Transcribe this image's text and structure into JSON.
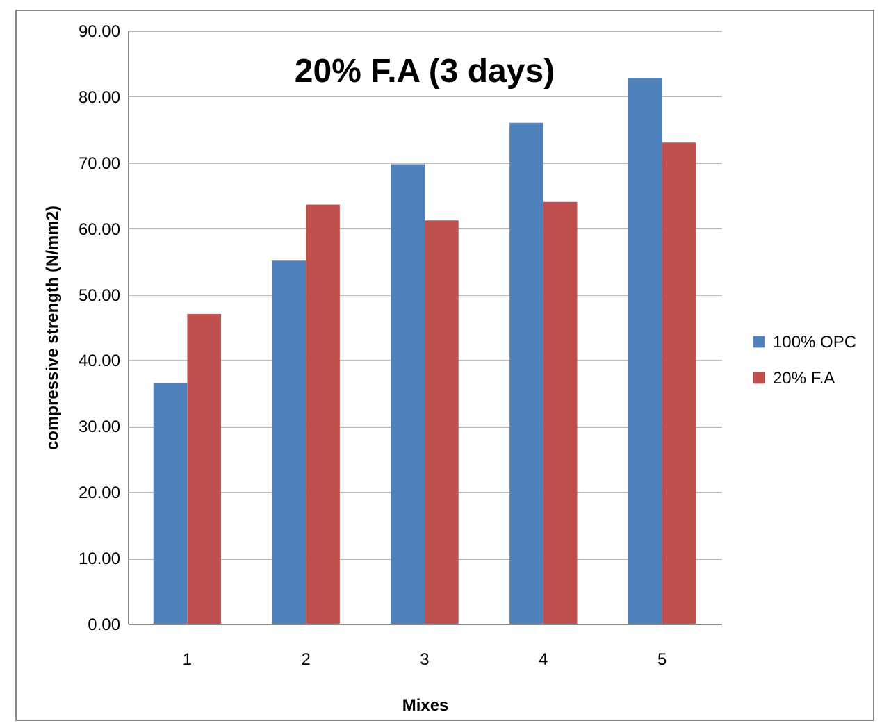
{
  "chart_data": {
    "type": "bar",
    "title": "20% F.A (3 days)",
    "xlabel": "Mixes",
    "ylabel": "compressive strength (N/mm2)",
    "categories": [
      "1",
      "2",
      "3",
      "4",
      "5"
    ],
    "series": [
      {
        "name": "100% OPC",
        "color": "#4f81bd",
        "values": [
          36.5,
          55.1,
          69.7,
          76.0,
          82.8
        ]
      },
      {
        "name": "20% F.A",
        "color": "#c0504d",
        "values": [
          47.0,
          63.6,
          61.2,
          64.0,
          73.0
        ]
      }
    ],
    "ylim": [
      0,
      90
    ],
    "yticks": [
      {
        "value": 0,
        "label": "0.00"
      },
      {
        "value": 10,
        "label": "10.00"
      },
      {
        "value": 20,
        "label": "20.00"
      },
      {
        "value": 30,
        "label": "30.00"
      },
      {
        "value": 40,
        "label": "40.00"
      },
      {
        "value": 50,
        "label": "50.00"
      },
      {
        "value": 60,
        "label": "60.00"
      },
      {
        "value": 70,
        "label": "70.00"
      },
      {
        "value": 80,
        "label": "80.00"
      },
      {
        "value": 90,
        "label": "90.00"
      }
    ],
    "grid": "y",
    "legend": "right"
  }
}
